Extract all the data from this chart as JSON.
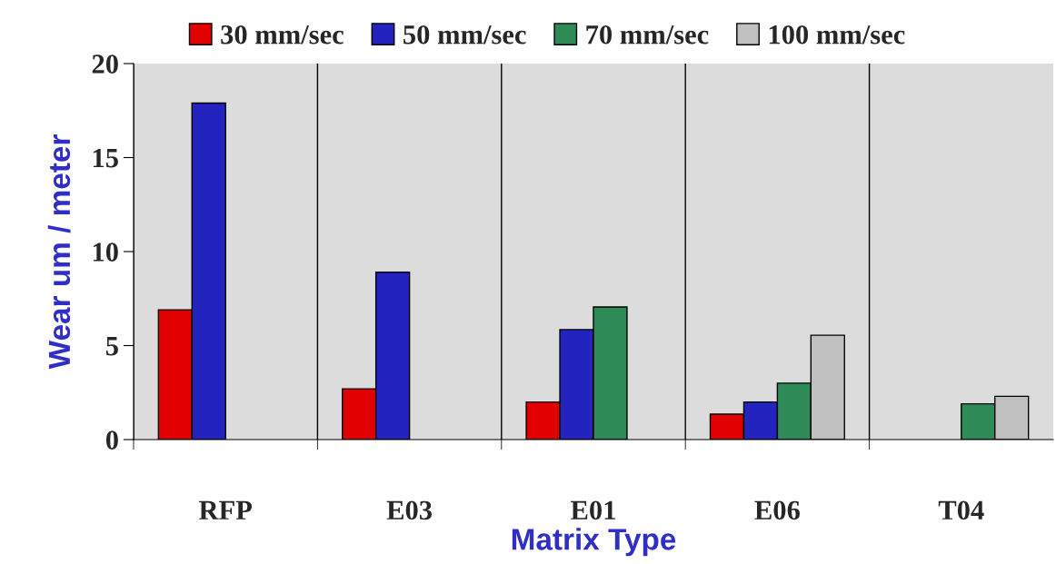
{
  "chart_data": {
    "type": "bar",
    "xlabel": "Matrix Type",
    "ylabel": "Wear um / meter",
    "categories": [
      "RFP",
      "E03",
      "E01",
      "E06",
      "T04"
    ],
    "series": [
      {
        "name": "30 mm/sec",
        "color": "#e00000",
        "values": [
          6.9,
          2.7,
          2.0,
          1.35,
          null
        ]
      },
      {
        "name": "50 mm/sec",
        "color": "#2323c0",
        "values": [
          17.9,
          8.9,
          5.85,
          2.0,
          null
        ]
      },
      {
        "name": "70 mm/sec",
        "color": "#2e8b57",
        "values": [
          null,
          null,
          7.05,
          3.0,
          1.9
        ]
      },
      {
        "name": "100 mm/sec",
        "color": "#c0c0c0",
        "values": [
          null,
          null,
          null,
          5.55,
          2.3
        ]
      }
    ],
    "ylim": [
      0,
      20
    ],
    "yticks": [
      0,
      5,
      10,
      15,
      20
    ],
    "grid": "x",
    "legend": "top"
  }
}
